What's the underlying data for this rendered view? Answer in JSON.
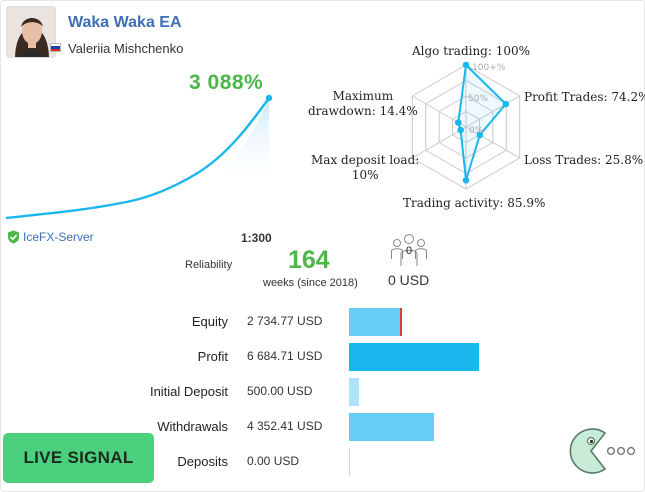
{
  "signal": {
    "title": "Waka Waka EA",
    "author": "Valeriia Mishchenko",
    "growth": "3 088%",
    "server": "IceFX-Server",
    "leverage": "1:300",
    "reliability_label": "Reliability",
    "weeks": "164",
    "weeks_label": "weeks (since 2018)",
    "subscribers_count": "0",
    "subscribers_funds": "0 USD"
  },
  "radar": {
    "rings": [
      "100+%",
      "50%",
      "0%"
    ],
    "axes": [
      {
        "label": "Algo trading: 100%",
        "value": 100
      },
      {
        "label": "Profit Trades: 74.2%",
        "value": 74.2
      },
      {
        "label": "Loss Trades: 25.8%",
        "value": 25.8
      },
      {
        "label": "Trading activity: 85.9%",
        "value": 85.9
      },
      {
        "label_line1": "Max deposit load:",
        "label_line2": "10%",
        "value": 10
      },
      {
        "label_line1": "Maximum",
        "label_line2": "drawdown: 14.4%",
        "value": 14.4
      }
    ]
  },
  "financials": {
    "max": 6684.71,
    "rows": [
      {
        "label": "Equity",
        "value": "2 734.77 USD",
        "amount": 2734.77,
        "color": "#66cdf5",
        "marker": "#e0393e"
      },
      {
        "label": "Profit",
        "value": "6 684.71 USD",
        "amount": 6684.71,
        "color": "#1ab7ee"
      },
      {
        "label": "Initial Deposit",
        "value": "500.00 USD",
        "amount": 500.0,
        "color": "#aee3f9"
      },
      {
        "label": "Withdrawals",
        "value": "4 352.41 USD",
        "amount": 4352.41,
        "color": "#66cdf5"
      },
      {
        "label": "Deposits",
        "value": "0.00 USD",
        "amount": 0,
        "color": "#aee3f9"
      }
    ]
  },
  "badge": {
    "live_label": "LIVE SIGNAL"
  },
  "colors": {
    "accent": "#3f6fb5",
    "green": "#4cb749",
    "chart": "#1ab7ee",
    "live_bg": "#4cd07d"
  },
  "flag_colors": [
    "#ffffff",
    "#1c3fa8",
    "#d52b1e"
  ]
}
